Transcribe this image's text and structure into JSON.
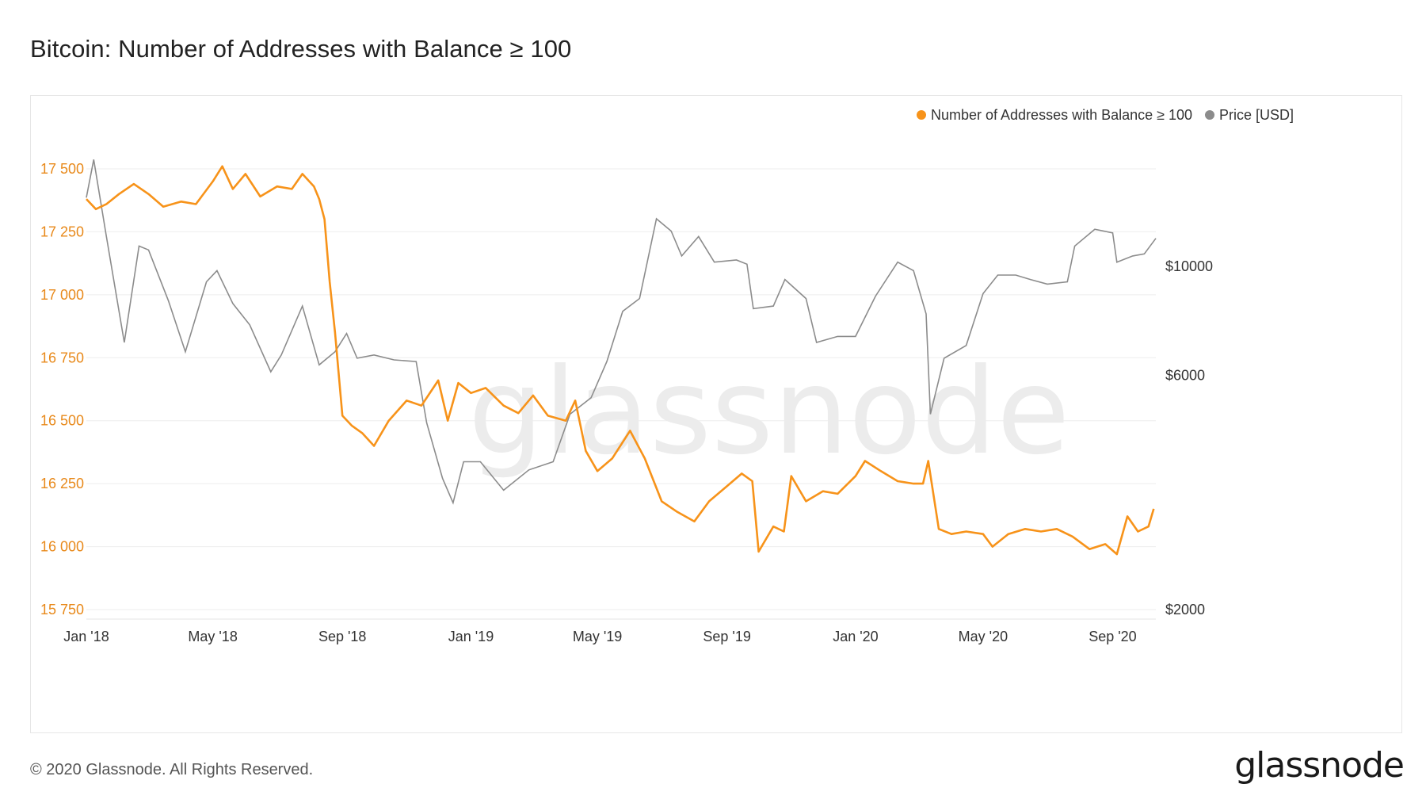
{
  "title": "Bitcoin: Number of Addresses with Balance ≥ 100",
  "footer": "© 2020 Glassnode. All Rights Reserved.",
  "brand": "glassnode",
  "watermark": "glassnode",
  "chart_data": {
    "type": "line",
    "title": "Bitcoin: Number of Addresses with Balance ≥ 100",
    "x_ticks": [
      "Jan '18",
      "May '18",
      "Sep '18",
      "Jan '19",
      "May '19",
      "Sep '19",
      "Jan '20",
      "May '20",
      "Sep '20"
    ],
    "y_left": {
      "ticks": [
        "15 750",
        "16 000",
        "16 250",
        "16 500",
        "16 750",
        "17 000",
        "17 250",
        "17 500"
      ],
      "range": [
        15750,
        17500
      ]
    },
    "y_right": {
      "ticks": [
        "$2000",
        "$6000",
        "$10000"
      ],
      "values": [
        2000,
        6000,
        10000
      ],
      "scale": "log"
    },
    "legend": {
      "position": "top-right",
      "entries": [
        "Number of Addresses with Balance ≥ 100",
        "Price [USD]"
      ]
    },
    "colors": {
      "addresses": "#f7931a",
      "price": "#8c8c8c",
      "left_axis": "#e8891a",
      "grid": "#eeeeee"
    },
    "grid": true,
    "series": [
      {
        "name": "Number of Addresses with Balance ≥ 100",
        "axis": "left",
        "points": [
          [
            "2018-01-01",
            17380
          ],
          [
            "2018-01-10",
            17340
          ],
          [
            "2018-01-20",
            17360
          ],
          [
            "2018-02-01",
            17400
          ],
          [
            "2018-02-15",
            17440
          ],
          [
            "2018-03-01",
            17400
          ],
          [
            "2018-03-15",
            17350
          ],
          [
            "2018-04-01",
            17370
          ],
          [
            "2018-04-15",
            17360
          ],
          [
            "2018-05-01",
            17450
          ],
          [
            "2018-05-10",
            17510
          ],
          [
            "2018-05-20",
            17420
          ],
          [
            "2018-06-01",
            17480
          ],
          [
            "2018-06-15",
            17390
          ],
          [
            "2018-07-01",
            17430
          ],
          [
            "2018-07-15",
            17420
          ],
          [
            "2018-07-25",
            17480
          ],
          [
            "2018-08-05",
            17430
          ],
          [
            "2018-08-10",
            17380
          ],
          [
            "2018-08-15",
            17300
          ],
          [
            "2018-08-20",
            17050
          ],
          [
            "2018-08-25",
            16850
          ],
          [
            "2018-09-01",
            16520
          ],
          [
            "2018-09-10",
            16480
          ],
          [
            "2018-09-20",
            16450
          ],
          [
            "2018-10-01",
            16400
          ],
          [
            "2018-10-15",
            16500
          ],
          [
            "2018-11-01",
            16580
          ],
          [
            "2018-11-15",
            16560
          ],
          [
            "2018-12-01",
            16660
          ],
          [
            "2018-12-10",
            16500
          ],
          [
            "2018-12-20",
            16650
          ],
          [
            "2019-01-01",
            16610
          ],
          [
            "2019-01-15",
            16630
          ],
          [
            "2019-02-01",
            16560
          ],
          [
            "2019-02-15",
            16530
          ],
          [
            "2019-03-01",
            16600
          ],
          [
            "2019-03-15",
            16520
          ],
          [
            "2019-04-01",
            16500
          ],
          [
            "2019-04-10",
            16580
          ],
          [
            "2019-04-20",
            16380
          ],
          [
            "2019-05-01",
            16300
          ],
          [
            "2019-05-15",
            16350
          ],
          [
            "2019-06-01",
            16460
          ],
          [
            "2019-06-15",
            16350
          ],
          [
            "2019-07-01",
            16180
          ],
          [
            "2019-07-15",
            16140
          ],
          [
            "2019-08-01",
            16100
          ],
          [
            "2019-08-15",
            16180
          ],
          [
            "2019-09-01",
            16240
          ],
          [
            "2019-09-15",
            16290
          ],
          [
            "2019-09-25",
            16260
          ],
          [
            "2019-10-01",
            15980
          ],
          [
            "2019-10-15",
            16080
          ],
          [
            "2019-10-25",
            16060
          ],
          [
            "2019-11-01",
            16280
          ],
          [
            "2019-11-15",
            16180
          ],
          [
            "2019-12-01",
            16220
          ],
          [
            "2019-12-15",
            16210
          ],
          [
            "2020-01-01",
            16280
          ],
          [
            "2020-01-10",
            16340
          ],
          [
            "2020-01-25",
            16300
          ],
          [
            "2020-02-10",
            16260
          ],
          [
            "2020-02-25",
            16250
          ],
          [
            "2020-03-05",
            16250
          ],
          [
            "2020-03-10",
            16340
          ],
          [
            "2020-03-20",
            16070
          ],
          [
            "2020-04-01",
            16050
          ],
          [
            "2020-04-15",
            16060
          ],
          [
            "2020-05-01",
            16050
          ],
          [
            "2020-05-10",
            16000
          ],
          [
            "2020-05-25",
            16050
          ],
          [
            "2020-06-10",
            16070
          ],
          [
            "2020-06-25",
            16060
          ],
          [
            "2020-07-10",
            16070
          ],
          [
            "2020-07-25",
            16040
          ],
          [
            "2020-08-10",
            15990
          ],
          [
            "2020-08-25",
            16010
          ],
          [
            "2020-09-05",
            15970
          ],
          [
            "2020-09-15",
            16120
          ],
          [
            "2020-09-25",
            16060
          ],
          [
            "2020-10-05",
            16080
          ],
          [
            "2020-10-10",
            16150
          ]
        ]
      },
      {
        "name": "Price [USD]",
        "axis": "right",
        "points": [
          [
            "2018-01-01",
            13800
          ],
          [
            "2018-01-08",
            16500
          ],
          [
            "2018-01-20",
            11500
          ],
          [
            "2018-02-06",
            7000
          ],
          [
            "2018-02-20",
            11000
          ],
          [
            "2018-03-01",
            10800
          ],
          [
            "2018-03-20",
            8500
          ],
          [
            "2018-04-05",
            6700
          ],
          [
            "2018-04-25",
            9300
          ],
          [
            "2018-05-05",
            9800
          ],
          [
            "2018-05-20",
            8400
          ],
          [
            "2018-06-05",
            7600
          ],
          [
            "2018-06-25",
            6100
          ],
          [
            "2018-07-05",
            6600
          ],
          [
            "2018-07-25",
            8300
          ],
          [
            "2018-08-10",
            6300
          ],
          [
            "2018-08-25",
            6700
          ],
          [
            "2018-09-05",
            7300
          ],
          [
            "2018-09-15",
            6500
          ],
          [
            "2018-10-01",
            6600
          ],
          [
            "2018-10-20",
            6450
          ],
          [
            "2018-11-10",
            6400
          ],
          [
            "2018-11-20",
            4800
          ],
          [
            "2018-12-05",
            3700
          ],
          [
            "2018-12-15",
            3300
          ],
          [
            "2018-12-25",
            4000
          ],
          [
            "2019-01-10",
            4000
          ],
          [
            "2019-02-01",
            3500
          ],
          [
            "2019-02-25",
            3850
          ],
          [
            "2019-03-20",
            4000
          ],
          [
            "2019-04-05",
            5000
          ],
          [
            "2019-04-25",
            5400
          ],
          [
            "2019-05-10",
            6400
          ],
          [
            "2019-05-25",
            8100
          ],
          [
            "2019-06-10",
            8600
          ],
          [
            "2019-06-26",
            12500
          ],
          [
            "2019-07-10",
            11800
          ],
          [
            "2019-07-20",
            10500
          ],
          [
            "2019-08-05",
            11500
          ],
          [
            "2019-08-20",
            10200
          ],
          [
            "2019-09-10",
            10300
          ],
          [
            "2019-09-20",
            10100
          ],
          [
            "2019-09-26",
            8200
          ],
          [
            "2019-10-15",
            8300
          ],
          [
            "2019-10-26",
            9400
          ],
          [
            "2019-11-15",
            8600
          ],
          [
            "2019-11-25",
            7000
          ],
          [
            "2019-12-15",
            7200
          ],
          [
            "2020-01-01",
            7200
          ],
          [
            "2020-01-20",
            8700
          ],
          [
            "2020-02-10",
            10200
          ],
          [
            "2020-02-25",
            9800
          ],
          [
            "2020-03-08",
            8000
          ],
          [
            "2020-03-12",
            5000
          ],
          [
            "2020-03-25",
            6500
          ],
          [
            "2020-04-15",
            6900
          ],
          [
            "2020-05-01",
            8800
          ],
          [
            "2020-05-15",
            9600
          ],
          [
            "2020-06-01",
            9600
          ],
          [
            "2020-06-15",
            9400
          ],
          [
            "2020-07-01",
            9200
          ],
          [
            "2020-07-20",
            9300
          ],
          [
            "2020-07-27",
            11000
          ],
          [
            "2020-08-15",
            11900
          ],
          [
            "2020-09-01",
            11700
          ],
          [
            "2020-09-05",
            10200
          ],
          [
            "2020-09-20",
            10500
          ],
          [
            "2020-10-01",
            10600
          ],
          [
            "2020-10-12",
            11400
          ]
        ]
      }
    ]
  }
}
